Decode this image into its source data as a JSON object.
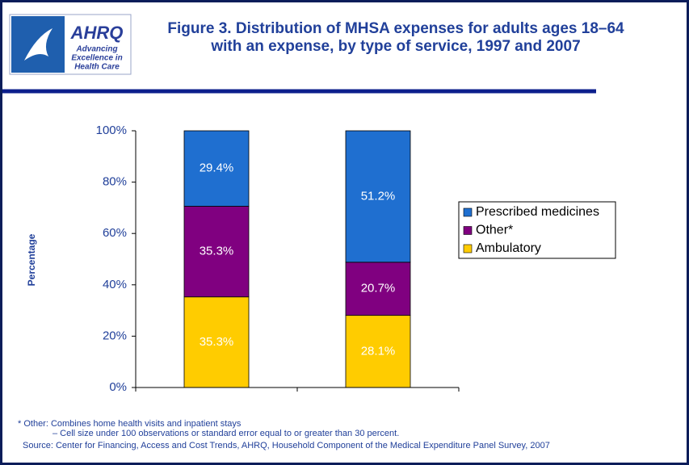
{
  "chart_data": {
    "type": "stacked_bar",
    "title": [
      "Figure 3. Distribution of MHSA expenses for adults ages 18–64",
      "with an expense, by type of service, 1997 and  2007"
    ],
    "y_label": "Percentage",
    "categories": [
      null,
      null
    ],
    "series": [
      {
        "name": "Ambulatory",
        "color": "#ffcc00",
        "values": [
          35.3,
          28.1
        ],
        "value_labels": [
          "35.3%",
          "28.1%"
        ]
      },
      {
        "name": "Other*",
        "color": "#800080",
        "values": [
          35.3,
          20.7
        ],
        "value_labels": [
          "35.3%",
          "20.7%"
        ]
      },
      {
        "name": "Prescribed medicines",
        "color": "#1f6fd0",
        "values": [
          29.4,
          51.2
        ],
        "value_labels": [
          "29.4%",
          "51.2%"
        ]
      }
    ],
    "ylim": [
      0,
      100
    ],
    "yticks": [
      {
        "value": 0,
        "label": "0%"
      },
      {
        "value": 20,
        "label": "20%"
      },
      {
        "value": 40,
        "label": "40%"
      },
      {
        "value": 60,
        "label": "60%"
      },
      {
        "value": 80,
        "label": "80%"
      },
      {
        "value": 100,
        "label": "100%"
      }
    ],
    "grid": false,
    "legend": "right",
    "notes": [
      "* Other:  Combines home health visits and inpatient stays",
      "– Cell size under 100 observations or standard error equal to or greater than 30 percent.",
      "Source: Center for Financing, Access and Cost Trends, AHRQ,  Household Component of the Medical Expenditure Panel Survey, 2007"
    ],
    "logo": [
      "AHRQ",
      "Advancing",
      "Excellence in",
      "Health Care"
    ]
  }
}
